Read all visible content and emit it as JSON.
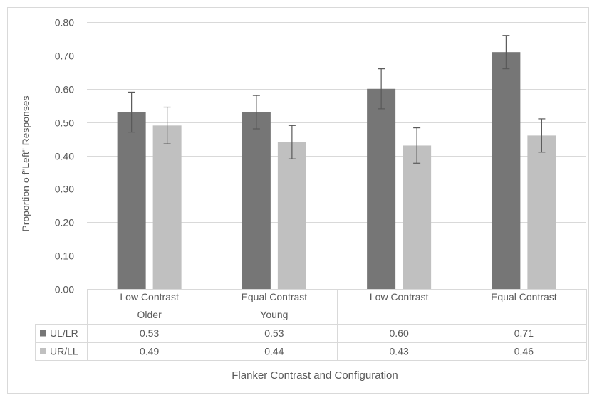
{
  "chart_data": {
    "type": "bar",
    "ylabel": "Proportion o f\"Left\" Responses",
    "xlabel": "Flanker Contrast and Configuration",
    "ylim": [
      0,
      0.8
    ],
    "y_ticks": [
      "0.00",
      "0.10",
      "0.20",
      "0.30",
      "0.40",
      "0.50",
      "0.60",
      "0.70",
      "0.80"
    ],
    "grid": true,
    "categories": [
      [
        "Low Contrast",
        "Older"
      ],
      [
        "Equal Contrast",
        "Young"
      ],
      [
        "Low Contrast",
        ""
      ],
      [
        "Equal Contrast",
        ""
      ]
    ],
    "series": [
      {
        "name": "UL/LR",
        "color": "#767676",
        "values": [
          0.53,
          0.53,
          0.6,
          0.71
        ],
        "labels": [
          "0.53",
          "0.53",
          "0.60",
          "0.71"
        ],
        "error": [
          0.06,
          0.05,
          0.06,
          0.05
        ]
      },
      {
        "name": "UR/LL",
        "color": "#c0c0c0",
        "values": [
          0.49,
          0.44,
          0.43,
          0.46
        ],
        "labels": [
          "0.49",
          "0.44",
          "0.43",
          "0.46"
        ],
        "error": [
          0.055,
          0.05,
          0.053,
          0.05
        ]
      }
    ],
    "legend": "data-table"
  }
}
